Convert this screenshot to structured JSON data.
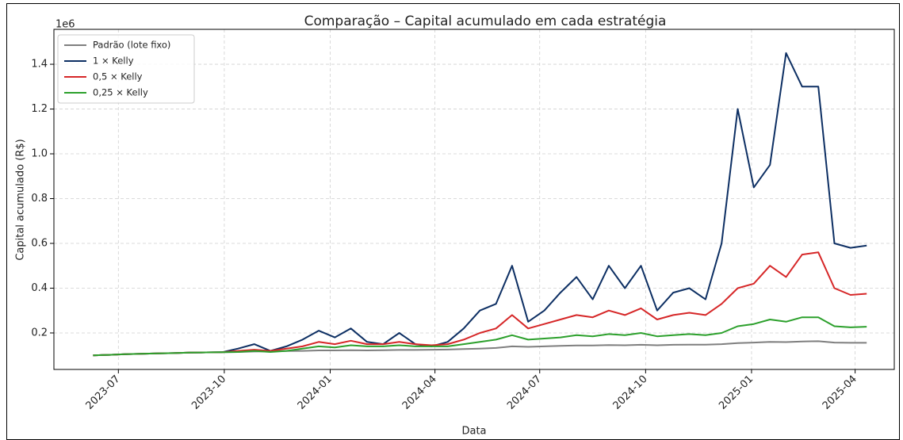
{
  "chart_data": {
    "type": "line",
    "title": "Comparação – Capital acumulado em cada estratégia",
    "x_label": "Data",
    "y_label": "Capital acumulado (R$)",
    "y_offset_label": "1e6",
    "x": [
      "2023-06-09",
      "2023-06-23",
      "2023-07-07",
      "2023-07-21",
      "2023-08-04",
      "2023-08-18",
      "2023-09-01",
      "2023-09-15",
      "2023-09-29",
      "2023-10-13",
      "2023-10-27",
      "2023-11-10",
      "2023-11-24",
      "2023-12-08",
      "2023-12-22",
      "2024-01-05",
      "2024-01-19",
      "2024-02-02",
      "2024-02-16",
      "2024-03-01",
      "2024-03-15",
      "2024-03-29",
      "2024-04-12",
      "2024-04-26",
      "2024-05-10",
      "2024-05-24",
      "2024-06-07",
      "2024-06-21",
      "2024-07-05",
      "2024-07-19",
      "2024-08-02",
      "2024-08-16",
      "2024-08-30",
      "2024-09-13",
      "2024-09-27",
      "2024-10-11",
      "2024-10-25",
      "2024-11-08",
      "2024-11-22",
      "2024-12-06",
      "2024-12-20",
      "2025-01-03",
      "2025-01-17",
      "2025-01-31",
      "2025-02-14",
      "2025-02-28",
      "2025-03-14",
      "2025-03-28",
      "2025-04-11"
    ],
    "series": [
      {
        "name": "Padrão (lote fixo)",
        "color": "#7f7f7f",
        "values": [
          0.1,
          0.102,
          0.105,
          0.107,
          0.109,
          0.11,
          0.112,
          0.113,
          0.114,
          0.115,
          0.117,
          0.118,
          0.119,
          0.12,
          0.122,
          0.122,
          0.123,
          0.122,
          0.123,
          0.124,
          0.124,
          0.125,
          0.126,
          0.128,
          0.13,
          0.133,
          0.14,
          0.138,
          0.14,
          0.142,
          0.144,
          0.144,
          0.146,
          0.145,
          0.147,
          0.145,
          0.147,
          0.148,
          0.148,
          0.15,
          0.155,
          0.157,
          0.16,
          0.159,
          0.162,
          0.163,
          0.157,
          0.156,
          0.156
        ]
      },
      {
        "name": "1 × Kelly",
        "color": "#0d2f63",
        "values": [
          0.1,
          0.102,
          0.105,
          0.107,
          0.109,
          0.11,
          0.112,
          0.113,
          0.114,
          0.13,
          0.15,
          0.12,
          0.14,
          0.17,
          0.21,
          0.18,
          0.22,
          0.16,
          0.15,
          0.2,
          0.15,
          0.14,
          0.16,
          0.22,
          0.3,
          0.33,
          0.5,
          0.25,
          0.3,
          0.38,
          0.45,
          0.35,
          0.5,
          0.4,
          0.5,
          0.3,
          0.38,
          0.4,
          0.35,
          0.6,
          1.2,
          0.85,
          0.95,
          1.45,
          1.3,
          1.3,
          0.6,
          0.58,
          0.59
        ]
      },
      {
        "name": "0,5 × Kelly",
        "color": "#d62728",
        "values": [
          0.1,
          0.102,
          0.105,
          0.107,
          0.109,
          0.11,
          0.112,
          0.113,
          0.114,
          0.12,
          0.125,
          0.12,
          0.13,
          0.14,
          0.16,
          0.15,
          0.165,
          0.15,
          0.15,
          0.16,
          0.15,
          0.145,
          0.15,
          0.17,
          0.2,
          0.22,
          0.28,
          0.22,
          0.24,
          0.26,
          0.28,
          0.27,
          0.3,
          0.28,
          0.31,
          0.26,
          0.28,
          0.29,
          0.28,
          0.33,
          0.4,
          0.42,
          0.5,
          0.45,
          0.55,
          0.56,
          0.4,
          0.37,
          0.375
        ]
      },
      {
        "name": "0,25 × Kelly",
        "color": "#2ca02c",
        "values": [
          0.1,
          0.102,
          0.105,
          0.107,
          0.109,
          0.11,
          0.112,
          0.113,
          0.114,
          0.115,
          0.12,
          0.115,
          0.12,
          0.13,
          0.14,
          0.135,
          0.145,
          0.14,
          0.14,
          0.145,
          0.14,
          0.14,
          0.14,
          0.15,
          0.16,
          0.17,
          0.19,
          0.17,
          0.175,
          0.18,
          0.19,
          0.185,
          0.195,
          0.19,
          0.2,
          0.185,
          0.19,
          0.195,
          0.19,
          0.2,
          0.23,
          0.24,
          0.26,
          0.25,
          0.27,
          0.27,
          0.23,
          0.225,
          0.228
        ]
      }
    ],
    "xlim": [
      "2023-05-06",
      "2025-05-05"
    ],
    "xticks": [
      "2023-07",
      "2023-10",
      "2024-01",
      "2024-04",
      "2024-07",
      "2024-10",
      "2025-01",
      "2025-04"
    ],
    "ylim": [
      0.037,
      1.556
    ],
    "yticks": [
      0.2,
      0.4,
      0.6,
      0.8,
      {
        "value": 1,
        "label": "1.0"
      },
      1.2,
      1.4
    ],
    "grid": true,
    "legend": "upper left"
  }
}
